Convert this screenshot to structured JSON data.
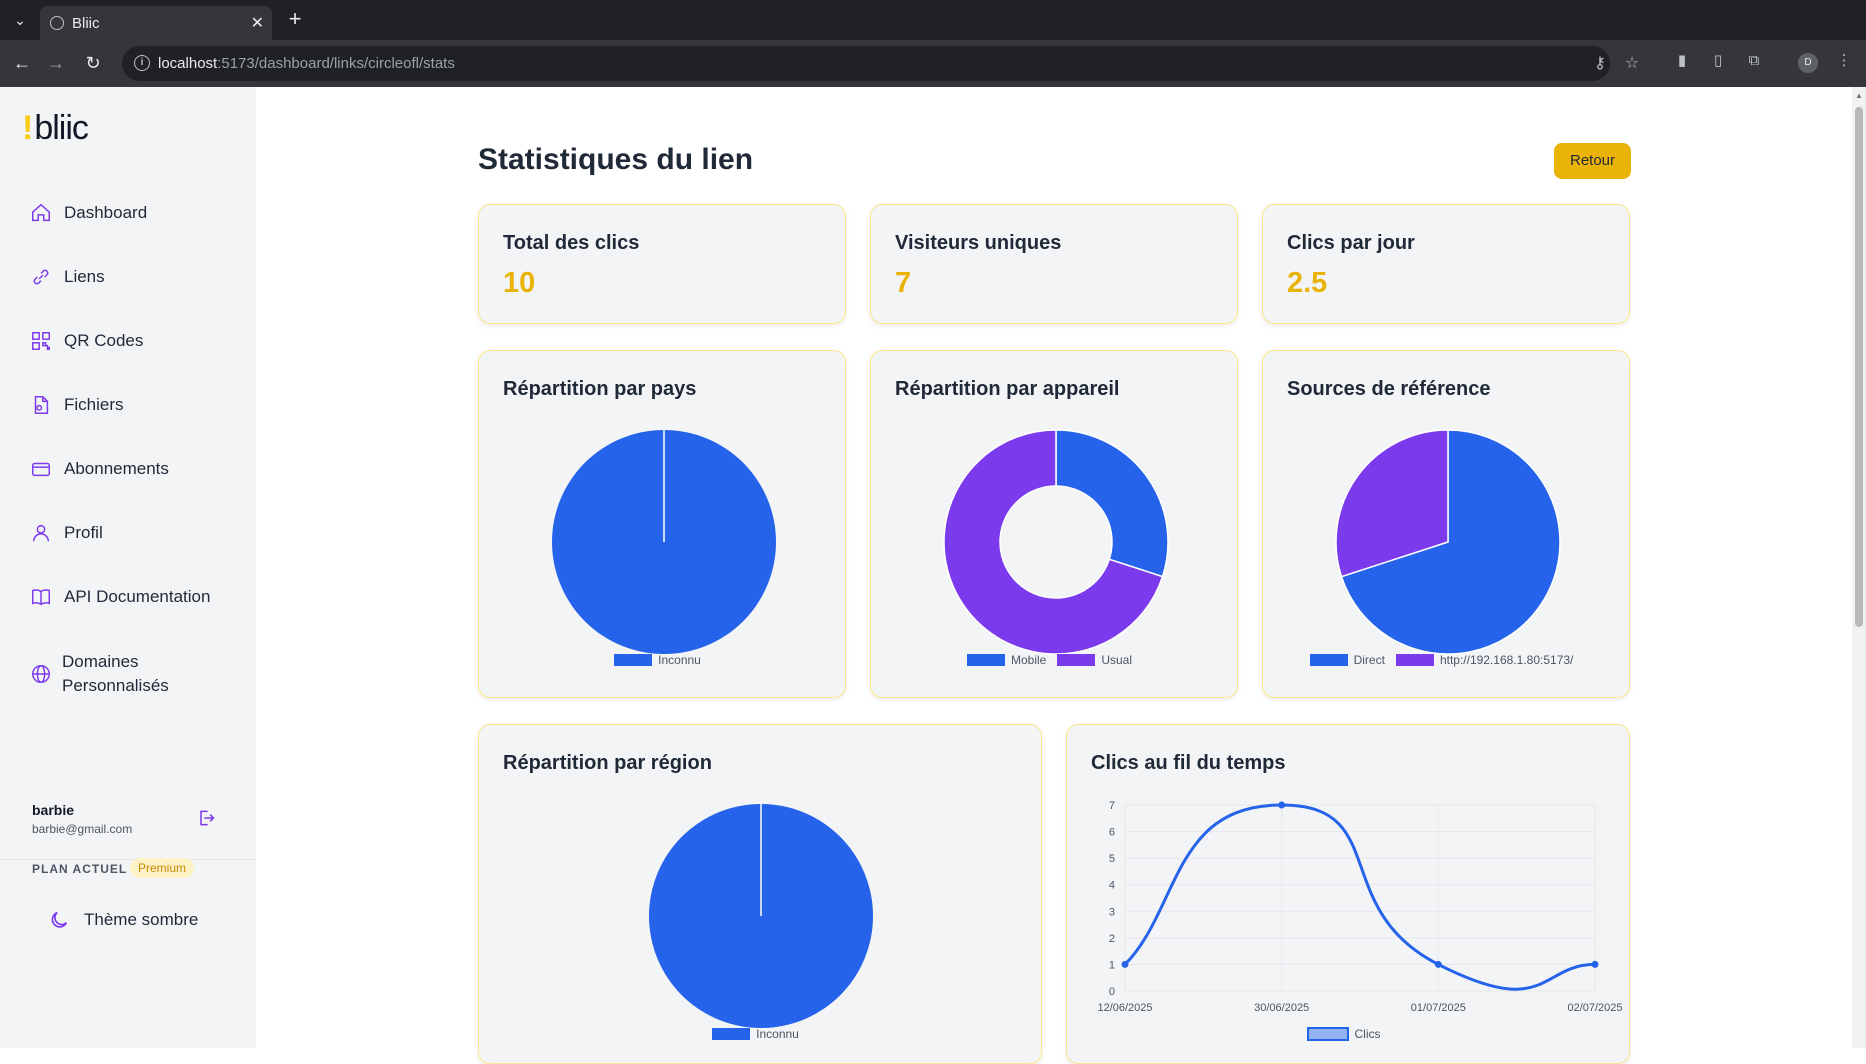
{
  "browser": {
    "tab_title": "Bliic",
    "url_host": "localhost",
    "url_path": ":5173/dashboard/links/circleofl/stats",
    "profile_initial": "D"
  },
  "sidebar": {
    "logo_mark": "!",
    "logo_text": "bliic",
    "items": [
      {
        "label": "Dashboard",
        "icon": "home-icon"
      },
      {
        "label": "Liens",
        "icon": "link-icon"
      },
      {
        "label": "QR Codes",
        "icon": "qr-code-icon"
      },
      {
        "label": "Fichiers",
        "icon": "file-icon"
      },
      {
        "label": "Abonnements",
        "icon": "credit-card-icon"
      },
      {
        "label": "Profil",
        "icon": "user-icon"
      },
      {
        "label": "API Documentation",
        "icon": "book-icon"
      },
      {
        "label": "Domaines",
        "label2": "Personnalisés",
        "icon": "globe-icon"
      }
    ],
    "user": {
      "name": "barbie",
      "email": "barbie@gmail.com"
    },
    "plan_label": "PLAN ACTUEL",
    "plan_badge": "Premium",
    "theme_label": "Thème sombre"
  },
  "main": {
    "title": "Statistiques du lien",
    "back_label": "Retour",
    "stats": [
      {
        "label": "Total des clics",
        "value": "10"
      },
      {
        "label": "Visiteurs uniques",
        "value": "7"
      },
      {
        "label": "Clics par jour",
        "value": "2.5"
      }
    ]
  },
  "colors": {
    "blue": "#2563eb",
    "purple": "#7c3aed",
    "accent": "#eab308"
  },
  "chart_data": [
    {
      "type": "pie",
      "title": "Répartition par pays",
      "labels": [
        "Inconnu"
      ],
      "values": [
        10
      ],
      "colors": [
        "#2563eb"
      ]
    },
    {
      "type": "doughnut",
      "title": "Répartition par appareil",
      "labels": [
        "Mobile",
        "Usual"
      ],
      "values": [
        3,
        7
      ],
      "colors": [
        "#2563eb",
        "#7c3aed"
      ]
    },
    {
      "type": "pie",
      "title": "Sources de référence",
      "labels": [
        "Direct",
        "http://192.168.1.80:5173/"
      ],
      "values": [
        7,
        3
      ],
      "colors": [
        "#2563eb",
        "#7c3aed"
      ]
    },
    {
      "type": "pie",
      "title": "Répartition par région",
      "labels": [
        "Inconnu"
      ],
      "values": [
        10
      ],
      "colors": [
        "#2563eb"
      ]
    },
    {
      "type": "line",
      "title": "Clics au fil du temps",
      "categories": [
        "12/06/2025",
        "30/06/2025",
        "01/07/2025",
        "02/07/2025"
      ],
      "series": [
        {
          "name": "Clics",
          "values": [
            1,
            7,
            1,
            1
          ]
        }
      ],
      "ylim": [
        0,
        7
      ],
      "yticks": [
        "0",
        "1",
        "2",
        "3",
        "4",
        "5",
        "6",
        "7"
      ],
      "grid": true,
      "color": "#2563eb"
    }
  ]
}
